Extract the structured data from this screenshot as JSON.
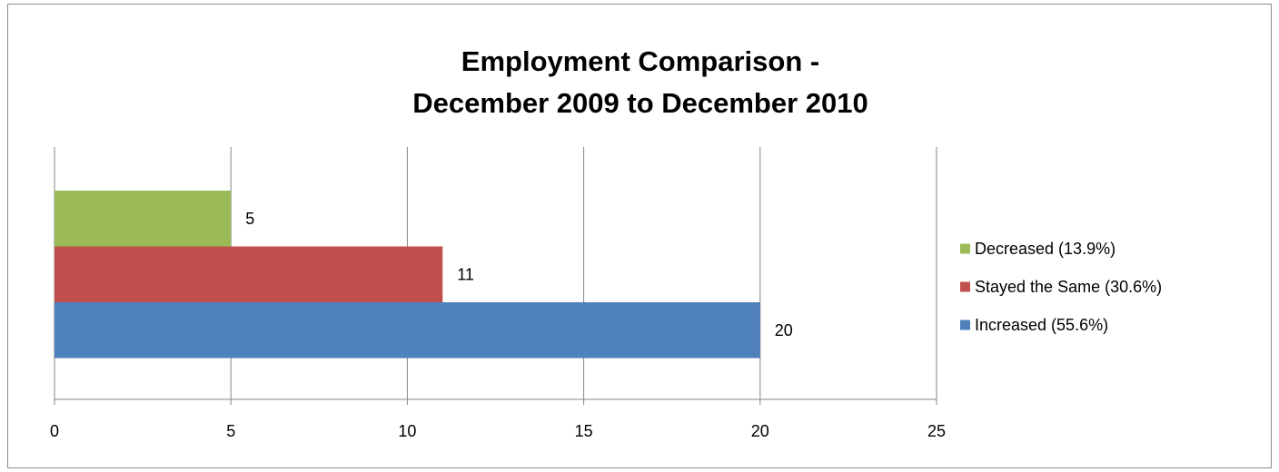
{
  "chart_data": {
    "type": "bar",
    "orientation": "horizontal",
    "title": [
      "Employment Comparison -",
      "December 2009 to December 2010"
    ],
    "xlabel": "",
    "ylabel": "",
    "xlim": [
      0,
      25
    ],
    "x_ticks": [
      0,
      5,
      10,
      15,
      20,
      25
    ],
    "grid": "vertical",
    "legend_position": "right",
    "series": [
      {
        "name": "Increased (55.6%)",
        "value": 20,
        "color": "#4f81bd"
      },
      {
        "name": "Stayed the Same (30.6%)",
        "value": 11,
        "color": "#c0504d"
      },
      {
        "name": "Decreased (13.9%)",
        "value": 5,
        "color": "#9bbb59"
      }
    ]
  }
}
